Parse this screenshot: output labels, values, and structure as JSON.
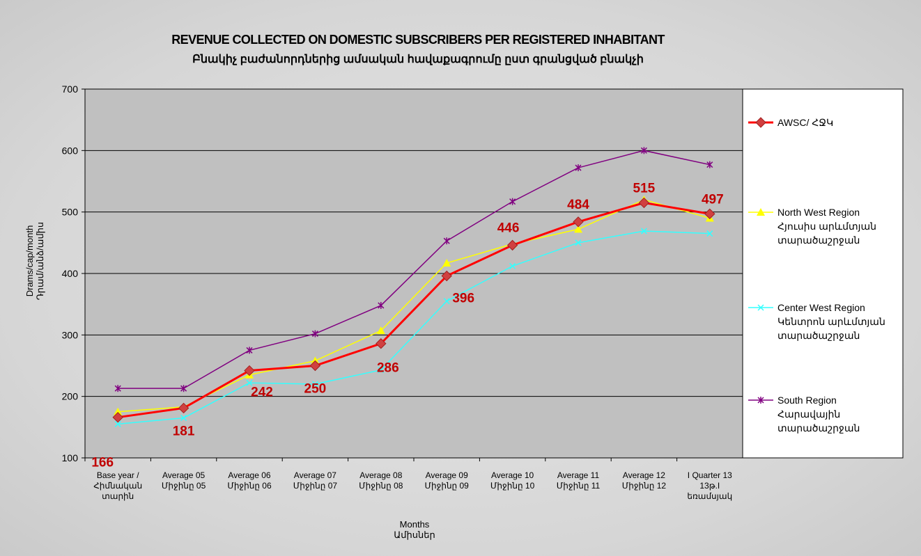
{
  "chart_data": {
    "type": "line",
    "title": "REVENUE COLLECTED ON DOMESTIC SUBSCRIBERS PER REGISTERED INHABITANT",
    "subtitle": "Բնակիչ բաժանորդներից ամսական հավաքագրումը ըստ գրանցված բնակչի",
    "xlabel": "Months\nԱմիսներ",
    "ylabel": "Drams/cap/month\nԴրամ/անձ/ամիս",
    "categories": [
      "Base year /\nՀիմնական\nտարին",
      "Average 05\nՄիջինը 05",
      "Average 06\nՄիջինը 06",
      "Average 07\nՄիջինը 07",
      "Average 08\nՄիջինը 08",
      "Average 09\nՄիջինը 09",
      "Average 10\nՄիջինը 10",
      "Average 11\nՄիջինը 11",
      "Average 12\nՄիջինը 12",
      "I Quarter 13\n13թ.I\nեռամսյակ"
    ],
    "series": [
      {
        "name": "AWSC/ ՀՋԿ",
        "color": "#ff0000",
        "marker": "diamond",
        "values": [
          166,
          181,
          242,
          250,
          286,
          396,
          446,
          484,
          515,
          497
        ]
      },
      {
        "name": "North West Region\nՀյուսիս արևմտյան\nտարածաշրջան",
        "color": "#ffff00",
        "marker": "triangle",
        "values": [
          175,
          183,
          235,
          258,
          307,
          417,
          448,
          472,
          520,
          490
        ]
      },
      {
        "name": "Center West Region\nԿենտրոն արևմտյան\nտարածաշրջան",
        "color": "#33ffff",
        "marker": "x",
        "values": [
          155,
          165,
          222,
          220,
          243,
          355,
          412,
          450,
          469,
          465
        ]
      },
      {
        "name": "South Region\nՀարավային\nտարածաշրջան",
        "color": "#800080",
        "marker": "star",
        "values": [
          213,
          213,
          275,
          302,
          348,
          453,
          517,
          572,
          600,
          577
        ]
      }
    ],
    "ylim": [
      100,
      700
    ],
    "yticks": [
      100,
      200,
      300,
      400,
      500,
      600,
      700
    ],
    "grid": true,
    "legend": "right",
    "data_labels_series": 0
  }
}
